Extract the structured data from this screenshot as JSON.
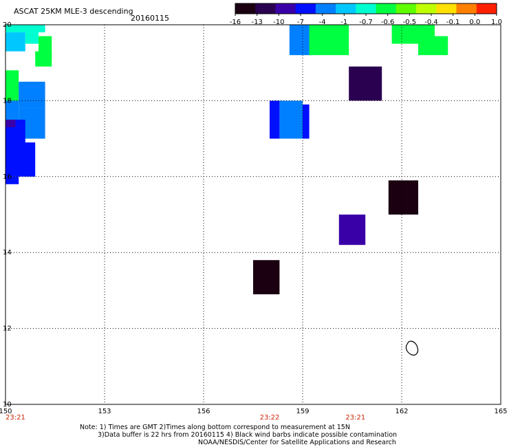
{
  "title": {
    "main": "ASCAT 25KM MLE-3 descending",
    "date": "20160115"
  },
  "colorbar": {
    "labels": [
      "-16",
      "-13",
      "-10",
      "-7",
      "-4",
      "-1",
      "-0.7",
      "-0.6",
      "-0.5",
      "-0.4",
      "-0.1",
      "0.0",
      "1.0"
    ],
    "colors": [
      "#1a0010",
      "#2a0050",
      "#3a00a8",
      "#0010ff",
      "#0080ff",
      "#00c8ff",
      "#00ffd0",
      "#00ff40",
      "#60ff00",
      "#c0ff00",
      "#ffe000",
      "#ff8000",
      "#ff2000"
    ]
  },
  "map": {
    "lon_range": [
      150,
      165
    ],
    "lat_range": [
      10,
      20
    ],
    "lon_ticks": [
      "150",
      "153",
      "156",
      "159",
      "162",
      "165"
    ],
    "lat_ticks": [
      "20",
      "18",
      "16",
      "14",
      "12",
      "10"
    ],
    "time_labels": [
      {
        "lon": 150.3,
        "text": "23:21"
      },
      {
        "lon": 158.0,
        "text": "23:22"
      },
      {
        "lon": 160.6,
        "text": "23:21"
      }
    ],
    "cells": [
      {
        "lon0": 150.0,
        "lon1": 151.2,
        "lat0": 19.8,
        "lat1": 20.0,
        "color": "#00ffd0"
      },
      {
        "lon0": 150.0,
        "lon1": 150.6,
        "lat0": 19.3,
        "lat1": 19.8,
        "color": "#00c8ff"
      },
      {
        "lon0": 150.6,
        "lon1": 151.0,
        "lat0": 19.5,
        "lat1": 19.8,
        "color": "#00ffd0"
      },
      {
        "lon0": 151.0,
        "lon1": 151.4,
        "lat0": 19.1,
        "lat1": 19.7,
        "color": "#00ff40"
      },
      {
        "lon0": 150.9,
        "lon1": 151.4,
        "lat0": 18.9,
        "lat1": 19.3,
        "color": "#00ff40"
      },
      {
        "lon0": 150.0,
        "lon1": 150.4,
        "lat0": 18.0,
        "lat1": 18.8,
        "color": "#00ff40"
      },
      {
        "lon0": 150.4,
        "lon1": 151.2,
        "lat0": 17.8,
        "lat1": 18.5,
        "color": "#0080ff"
      },
      {
        "lon0": 150.0,
        "lon1": 150.4,
        "lat0": 17.3,
        "lat1": 18.0,
        "color": "#0080ff"
      },
      {
        "lon0": 150.4,
        "lon1": 151.2,
        "lat0": 17.0,
        "lat1": 17.8,
        "color": "#0080ff"
      },
      {
        "lon0": 150.0,
        "lon1": 150.6,
        "lat0": 16.8,
        "lat1": 17.5,
        "color": "#0010ff"
      },
      {
        "lon0": 150.0,
        "lon1": 150.3,
        "lat0": 17.3,
        "lat1": 17.5,
        "color": "#3a00a8"
      },
      {
        "lon0": 150.0,
        "lon1": 150.9,
        "lat0": 16.0,
        "lat1": 16.9,
        "color": "#0010ff"
      },
      {
        "lon0": 150.0,
        "lon1": 150.4,
        "lat0": 15.8,
        "lat1": 16.0,
        "color": "#0010ff"
      },
      {
        "lon0": 158.6,
        "lon1": 159.3,
        "lat0": 19.2,
        "lat1": 20.0,
        "color": "#0080ff"
      },
      {
        "lon0": 159.2,
        "lon1": 160.4,
        "lat0": 19.2,
        "lat1": 20.0,
        "color": "#00ff40"
      },
      {
        "lon0": 161.7,
        "lon1": 163.0,
        "lat0": 19.5,
        "lat1": 20.0,
        "color": "#00ff40"
      },
      {
        "lon0": 162.5,
        "lon1": 163.4,
        "lat0": 19.2,
        "lat1": 19.7,
        "color": "#00ff40"
      },
      {
        "lon0": 160.4,
        "lon1": 161.4,
        "lat0": 18.0,
        "lat1": 18.9,
        "color": "#2a0050"
      },
      {
        "lon0": 158.0,
        "lon1": 158.3,
        "lat0": 17.0,
        "lat1": 18.0,
        "color": "#0010ff"
      },
      {
        "lon0": 158.3,
        "lon1": 159.0,
        "lat0": 17.0,
        "lat1": 18.0,
        "color": "#0080ff"
      },
      {
        "lon0": 159.0,
        "lon1": 159.2,
        "lat0": 17.0,
        "lat1": 17.9,
        "color": "#0010ff"
      },
      {
        "lon0": 161.6,
        "lon1": 162.5,
        "lat0": 15.0,
        "lat1": 15.9,
        "color": "#1a0010"
      },
      {
        "lon0": 160.1,
        "lon1": 160.9,
        "lat0": 14.2,
        "lat1": 15.0,
        "color": "#3a00a8"
      },
      {
        "lon0": 157.5,
        "lon1": 158.3,
        "lat0": 12.9,
        "lat1": 13.8,
        "color": "#1a0010"
      }
    ]
  },
  "notes": {
    "line1": "Note: 1) Times are GMT 2)Times along bottom correspond to measurement at 15N",
    "line2": "3)Data buffer is 22 hrs from 20160115 4) Black wind barbs indicate possible contamination",
    "line3": "NOAA/NESDIS/Center for Satellite Applications and Research"
  }
}
